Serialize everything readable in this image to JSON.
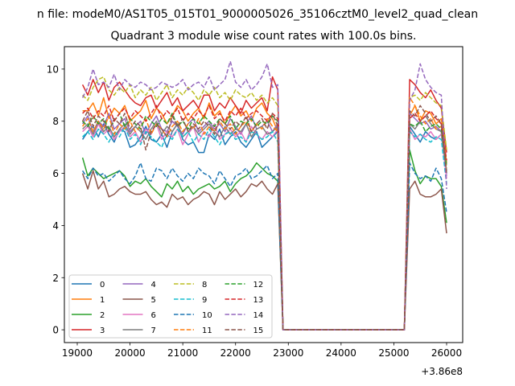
{
  "chart_data": {
    "type": "line",
    "suptitle": "n file: modeM0/AS1T05_015T01_9000005026_35106cztM0_level2_quad_clean",
    "title": "Quadrant 3 module wise count rates with 100.0s bins.",
    "xlabel": "",
    "ylabel": "",
    "x_offset_label": "+3.86e8",
    "xlim": [
      18756,
      26305
    ],
    "ylim": [
      -0.49,
      10.86
    ],
    "xticks": [
      19000,
      20000,
      21000,
      22000,
      23000,
      24000,
      25000,
      26000
    ],
    "xtick_labels": [
      "19000",
      "20000",
      "21000",
      "22000",
      "23000",
      "24000",
      "25000",
      "26000"
    ],
    "yticks": [
      0,
      2,
      4,
      6,
      8,
      10
    ],
    "ytick_labels": [
      "0",
      "2",
      "4",
      "6",
      "8",
      "10"
    ],
    "legend_placement": "lower-left",
    "legend_columns": 4,
    "segments": {
      "first": [
        19100,
        22800
      ],
      "zero": [
        22900,
        25200
      ],
      "last": [
        25300,
        26000
      ]
    },
    "series": [
      {
        "name": "0",
        "color": "#1f77b4",
        "dash": "solid",
        "first": [
          7.3,
          7.6,
          7.8,
          7.4,
          7.9,
          7.5,
          7.2,
          7.7,
          7.6,
          7.0,
          7.1,
          7.4,
          7.8,
          7.3,
          7.2,
          7.5,
          7.0,
          7.6,
          7.9,
          7.3,
          7.1,
          7.2,
          6.8,
          6.8,
          7.5,
          7.3,
          7.7,
          7.1,
          7.4,
          7.6,
          7.2,
          7.0,
          7.3,
          7.6,
          7.0,
          7.2,
          7.4,
          7.6
        ],
        "last": [
          7.8,
          7.5,
          7.2,
          7.6,
          7.4,
          7.3,
          7.5,
          6.0
        ]
      },
      {
        "name": "1",
        "color": "#ff7f0e",
        "dash": "solid",
        "first": [
          8.4,
          8.4,
          8.7,
          8.2,
          8.9,
          8.1,
          8.5,
          8.3,
          8.6,
          8.0,
          8.2,
          8.4,
          8.8,
          8.1,
          8.5,
          8.3,
          7.9,
          8.2,
          8.6,
          8.4,
          8.0,
          8.3,
          8.5,
          8.1,
          8.7,
          8.2,
          8.4,
          7.9,
          8.3,
          8.6,
          8.2,
          8.4,
          8.0,
          8.5,
          8.7,
          8.3,
          8.1,
          7.6
        ],
        "last": [
          8.2,
          8.6,
          8.0,
          8.4,
          8.3,
          7.9,
          8.1,
          6.4
        ]
      },
      {
        "name": "2",
        "color": "#2ca02c",
        "dash": "solid",
        "first": [
          6.6,
          5.9,
          6.2,
          6.0,
          5.8,
          5.9,
          6.0,
          6.1,
          5.9,
          5.5,
          5.7,
          5.6,
          5.8,
          5.5,
          5.3,
          5.1,
          5.6,
          5.4,
          5.7,
          5.3,
          5.5,
          5.2,
          5.4,
          5.5,
          5.6,
          5.4,
          5.5,
          5.7,
          5.3,
          5.6,
          5.8,
          5.9,
          6.1,
          6.4,
          6.2,
          6.0,
          5.9,
          5.7
        ],
        "last": [
          6.9,
          6.1,
          5.6,
          5.9,
          5.8,
          5.8,
          5.5,
          4.1
        ]
      },
      {
        "name": "3",
        "color": "#d62728",
        "dash": "solid",
        "first": [
          9.4,
          9.0,
          9.6,
          9.1,
          9.5,
          8.8,
          9.3,
          9.5,
          9.2,
          8.9,
          8.7,
          8.6,
          8.9,
          9.0,
          8.5,
          8.8,
          9.1,
          8.6,
          8.9,
          8.4,
          8.6,
          8.8,
          8.5,
          9.0,
          9.0,
          8.4,
          8.7,
          8.5,
          8.9,
          8.6,
          8.3,
          8.8,
          8.5,
          8.7,
          8.9,
          8.4,
          9.7,
          9.2
        ],
        "last": [
          9.6,
          9.4,
          9.1,
          8.9,
          9.2,
          8.8,
          8.5,
          6.8
        ]
      },
      {
        "name": "4",
        "color": "#9467bd",
        "dash": "solid",
        "first": [
          7.9,
          8.2,
          7.6,
          8.0,
          7.8,
          8.3,
          7.7,
          7.9,
          8.1,
          7.6,
          7.8,
          8.0,
          7.5,
          7.9,
          8.2,
          7.7,
          7.6,
          8.0,
          7.8,
          7.5,
          7.9,
          8.1,
          7.6,
          7.8,
          8.0,
          7.7,
          7.9,
          7.6,
          8.1,
          7.8,
          7.5,
          7.9,
          8.2,
          7.7,
          7.8,
          8.0,
          7.6,
          7.9
        ],
        "last": [
          8.3,
          8.1,
          7.9,
          8.0,
          7.7,
          7.8,
          7.6,
          5.9
        ]
      },
      {
        "name": "5",
        "color": "#8c564b",
        "dash": "solid",
        "first": [
          6.0,
          5.4,
          6.1,
          5.4,
          5.7,
          5.1,
          5.2,
          5.4,
          5.5,
          5.3,
          5.2,
          5.2,
          5.3,
          5.0,
          4.8,
          4.9,
          4.7,
          5.2,
          5.0,
          5.1,
          4.8,
          5.0,
          5.1,
          5.3,
          5.2,
          4.8,
          5.3,
          5.0,
          5.2,
          5.4,
          5.1,
          5.3,
          5.6,
          5.5,
          5.7,
          5.4,
          5.2,
          5.6
        ],
        "last": [
          5.4,
          5.7,
          5.2,
          5.1,
          5.1,
          5.2,
          5.4,
          3.7
        ]
      },
      {
        "name": "6",
        "color": "#e377c2",
        "dash": "solid",
        "first": [
          7.6,
          7.8,
          7.4,
          7.9,
          7.5,
          7.7,
          7.3,
          7.6,
          7.8,
          7.4,
          7.6,
          7.2,
          7.7,
          7.5,
          7.9,
          7.3,
          7.6,
          7.4,
          7.7,
          7.1,
          7.5,
          7.8,
          7.2,
          7.6,
          7.4,
          7.9,
          7.3,
          7.5,
          7.7,
          7.4,
          7.6,
          7.2,
          7.8,
          7.5,
          7.3,
          7.6,
          7.4,
          7.7
        ],
        "last": [
          7.7,
          7.3,
          7.5,
          7.4,
          7.6,
          7.3,
          7.5,
          5.8
        ]
      },
      {
        "name": "7",
        "color": "#7f7f7f",
        "dash": "solid",
        "first": [
          7.7,
          7.9,
          7.5,
          8.0,
          7.6,
          7.8,
          7.4,
          7.7,
          7.9,
          7.5,
          7.8,
          7.6,
          7.3,
          7.7,
          8.0,
          7.5,
          7.8,
          7.6,
          7.9,
          7.4,
          7.6,
          7.8,
          7.5,
          7.7,
          7.9,
          7.6,
          7.4,
          7.8,
          7.5,
          7.7,
          7.6,
          7.9,
          7.4,
          7.7,
          7.8,
          7.5,
          7.6,
          7.8
        ],
        "last": [
          7.9,
          7.7,
          8.0,
          8.2,
          7.9,
          7.7,
          7.6,
          6.1
        ]
      },
      {
        "name": "8",
        "color": "#bcbd22",
        "dash": "dashed",
        "first": [
          9.0,
          8.8,
          9.3,
          9.6,
          9.7,
          9.2,
          9.0,
          9.3,
          9.1,
          9.4,
          8.9,
          9.2,
          9.0,
          9.3,
          8.8,
          9.1,
          9.4,
          8.9,
          9.2,
          9.0,
          9.3,
          9.1,
          8.8,
          9.2,
          9.0,
          9.3,
          8.9,
          9.1,
          8.8,
          9.2,
          9.0,
          8.9,
          9.1,
          8.8,
          9.0,
          8.7,
          8.9,
          8.6
        ],
        "last": [
          8.9,
          9.0,
          8.8,
          9.1,
          8.9,
          8.7,
          8.6,
          6.9
        ]
      },
      {
        "name": "9",
        "color": "#17becf",
        "dash": "dashed",
        "first": [
          7.4,
          7.6,
          7.3,
          7.7,
          7.5,
          7.2,
          7.6,
          7.4,
          7.8,
          7.3,
          7.5,
          7.1,
          7.6,
          7.4,
          7.2,
          7.0,
          7.5,
          7.3,
          7.7,
          7.4,
          7.6,
          7.2,
          7.5,
          7.3,
          7.7,
          7.4,
          7.1,
          7.5,
          7.6,
          7.3,
          7.4,
          7.2,
          7.6,
          7.5,
          7.3,
          7.4,
          7.6,
          7.2
        ],
        "last": [
          7.6,
          7.4,
          7.5,
          7.3,
          7.2,
          7.4,
          7.3,
          5.6
        ]
      },
      {
        "name": "10",
        "color": "#1f77b4",
        "dash": "dashed",
        "first": [
          6.1,
          5.8,
          6.2,
          5.9,
          6.0,
          5.7,
          5.9,
          6.1,
          5.8,
          5.6,
          5.9,
          6.4,
          5.8,
          5.7,
          6.2,
          6.1,
          5.8,
          6.2,
          5.9,
          5.7,
          6.0,
          5.8,
          6.2,
          6.0,
          5.9,
          5.6,
          6.1,
          5.8,
          5.5,
          5.9,
          6.0,
          6.2,
          5.8,
          5.9,
          6.1,
          6.3,
          5.8,
          6.0
        ],
        "last": [
          6.4,
          6.0,
          5.8,
          5.9,
          5.7,
          6.2,
          5.8,
          4.5
        ]
      },
      {
        "name": "11",
        "color": "#ff7f0e",
        "dash": "dashed",
        "first": [
          7.8,
          8.1,
          7.6,
          8.0,
          7.7,
          8.2,
          7.5,
          7.9,
          7.7,
          8.0,
          7.6,
          7.8,
          8.1,
          7.5,
          7.9,
          7.7,
          7.4,
          7.8,
          8.0,
          7.6,
          7.9,
          7.7,
          8.1,
          7.5,
          7.8,
          7.6,
          8.0,
          7.7,
          7.9,
          7.5,
          7.8,
          8.0,
          7.6,
          7.9,
          7.7,
          8.1,
          7.8,
          7.6
        ],
        "last": [
          8.9,
          8.6,
          8.2,
          7.9,
          8.1,
          7.7,
          7.8,
          6.2
        ]
      },
      {
        "name": "12",
        "color": "#2ca02c",
        "dash": "dashed",
        "first": [
          8.0,
          7.8,
          8.2,
          7.9,
          8.1,
          7.7,
          8.0,
          8.3,
          7.8,
          8.1,
          7.9,
          7.7,
          8.2,
          8.0,
          7.8,
          8.1,
          7.9,
          8.3,
          7.8,
          8.0,
          7.7,
          8.1,
          7.9,
          8.2,
          8.0,
          7.8,
          8.1,
          7.9,
          8.2,
          7.7,
          8.0,
          7.9,
          8.1,
          7.8,
          8.0,
          7.9,
          8.2,
          8.0
        ],
        "last": [
          7.9,
          7.8,
          8.0,
          7.6,
          7.8,
          7.9,
          7.7,
          6.3
        ]
      },
      {
        "name": "13",
        "color": "#d62728",
        "dash": "dashed",
        "first": [
          8.3,
          8.5,
          8.1,
          8.4,
          8.2,
          8.6,
          8.0,
          8.3,
          8.5,
          8.1,
          8.4,
          8.2,
          8.0,
          8.3,
          8.6,
          8.1,
          8.4,
          8.2,
          8.5,
          8.0,
          8.3,
          8.1,
          8.4,
          8.2,
          8.6,
          8.1,
          8.3,
          8.0,
          8.4,
          8.2,
          8.5,
          8.1,
          8.3,
          8.4,
          8.2,
          8.0,
          8.3,
          8.1
        ],
        "last": [
          8.1,
          8.3,
          8.0,
          8.2,
          8.4,
          8.1,
          7.9,
          6.5
        ]
      },
      {
        "name": "14",
        "color": "#9467bd",
        "dash": "dashed",
        "first": [
          8.9,
          9.3,
          10.0,
          9.4,
          9.5,
          9.3,
          9.8,
          9.2,
          9.6,
          9.4,
          9.3,
          9.5,
          9.4,
          9.2,
          9.3,
          9.5,
          9.4,
          9.3,
          9.4,
          9.6,
          9.2,
          9.4,
          9.5,
          9.3,
          9.7,
          9.2,
          9.4,
          9.6,
          10.3,
          9.5,
          9.3,
          9.6,
          9.2,
          9.4,
          9.7,
          10.2,
          9.3,
          9.4
        ],
        "last": [
          8.8,
          9.2,
          10.2,
          9.6,
          9.3,
          9.1,
          9.0,
          5.4
        ]
      },
      {
        "name": "15",
        "color": "#8c564b",
        "dash": "dashed",
        "first": [
          8.0,
          8.4,
          7.8,
          8.2,
          8.0,
          7.6,
          8.1,
          7.9,
          8.3,
          7.7,
          8.0,
          7.8,
          6.9,
          7.6,
          7.9,
          7.7,
          7.4,
          8.2,
          7.8,
          8.1,
          7.6,
          7.9,
          7.7,
          8.0,
          7.8,
          7.5,
          8.1,
          7.9,
          7.7,
          8.0,
          7.8,
          8.2,
          7.6,
          7.9,
          8.1,
          7.7,
          8.3,
          7.8
        ],
        "last": [
          8.4,
          8.2,
          8.6,
          8.3,
          8.0,
          8.2,
          7.9,
          6.0
        ]
      }
    ]
  }
}
